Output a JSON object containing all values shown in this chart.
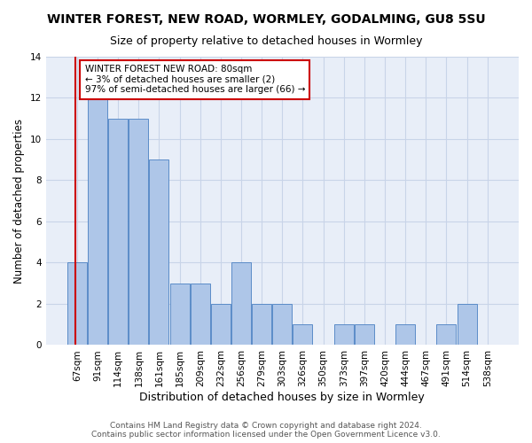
{
  "title": "WINTER FOREST, NEW ROAD, WORMLEY, GODALMING, GU8 5SU",
  "subtitle": "Size of property relative to detached houses in Wormley",
  "xlabel": "Distribution of detached houses by size in Wormley",
  "ylabel": "Number of detached properties",
  "categories": [
    "67sqm",
    "91sqm",
    "114sqm",
    "138sqm",
    "161sqm",
    "185sqm",
    "209sqm",
    "232sqm",
    "256sqm",
    "279sqm",
    "303sqm",
    "326sqm",
    "350sqm",
    "373sqm",
    "397sqm",
    "420sqm",
    "444sqm",
    "467sqm",
    "491sqm",
    "514sqm",
    "538sqm"
  ],
  "values": [
    4,
    12,
    11,
    11,
    9,
    3,
    3,
    2,
    4,
    2,
    2,
    1,
    0,
    1,
    1,
    0,
    1,
    0,
    1,
    2,
    0
  ],
  "bar_color": "#aec6e8",
  "bar_edge_color": "#5b8cc8",
  "red_line_x": -0.08,
  "highlight_color": "#cc0000",
  "annotation_text": "WINTER FOREST NEW ROAD: 80sqm\n← 3% of detached houses are smaller (2)\n97% of semi-detached houses are larger (66) →",
  "annotation_box_color": "#ffffff",
  "annotation_box_edge_color": "#cc0000",
  "footer_text": "Contains HM Land Registry data © Crown copyright and database right 2024.\nContains public sector information licensed under the Open Government Licence v3.0.",
  "ylim": [
    0,
    14
  ],
  "yticks": [
    0,
    2,
    4,
    6,
    8,
    10,
    12,
    14
  ],
  "grid_color": "#c8d4e8",
  "bg_color": "#e8eef8",
  "title_fontsize": 10,
  "subtitle_fontsize": 9,
  "ylabel_fontsize": 8.5,
  "xlabel_fontsize": 9,
  "tick_fontsize": 7.5,
  "footer_fontsize": 6.5,
  "annot_fontsize": 7.5
}
